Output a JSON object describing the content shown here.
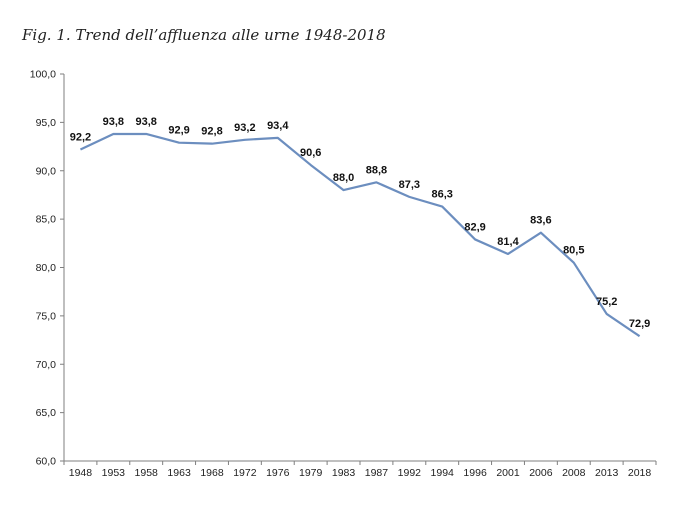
{
  "figure": {
    "caption": "Fig. 1. Trend dell’affluenza alle urne 1948-2018"
  },
  "chart_data": {
    "type": "line",
    "title": "",
    "xlabel": "",
    "ylabel": "",
    "categories": [
      "1948",
      "1953",
      "1958",
      "1963",
      "1968",
      "1972",
      "1976",
      "1979",
      "1983",
      "1987",
      "1992",
      "1994",
      "1996",
      "2001",
      "2006",
      "2008",
      "2013",
      "2018"
    ],
    "series": [
      {
        "values": [
          92.2,
          93.8,
          93.8,
          92.9,
          92.8,
          93.2,
          93.4,
          90.6,
          88.0,
          88.8,
          87.3,
          86.3,
          82.9,
          81.4,
          83.6,
          80.5,
          75.2,
          72.9
        ],
        "data_labels": [
          "92,2",
          "93,8",
          "93,8",
          "92,9",
          "92,8",
          "93,2",
          "93,4",
          "90,6",
          "88,0",
          "88,8",
          "87,3",
          "86,3",
          "82,9",
          "81,4",
          "83,6",
          "80,5",
          "75,2",
          "72,9"
        ],
        "color": "#6c8ebf"
      }
    ],
    "ylim": [
      60,
      100
    ],
    "yticks": [
      60,
      65,
      70,
      75,
      80,
      85,
      90,
      95,
      100
    ],
    "ytick_labels": [
      "60,0",
      "65,0",
      "70,0",
      "75,0",
      "80,0",
      "85,0",
      "90,0",
      "95,0",
      "100,0"
    ],
    "grid": false,
    "legend": "none"
  }
}
